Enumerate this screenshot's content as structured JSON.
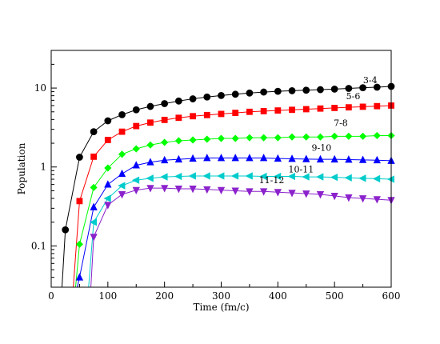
{
  "chart_data": {
    "type": "line",
    "title": "",
    "xlabel": "Time (fm/c)",
    "ylabel": "Population",
    "xlim": [
      0,
      600
    ],
    "ylim": [
      0.03,
      30
    ],
    "yscale": "log",
    "grid": false,
    "x_ticks": [
      0,
      100,
      200,
      300,
      400,
      500,
      600
    ],
    "y_ticks": [
      {
        "value": 0.1,
        "label": "0.1"
      },
      {
        "value": 1,
        "label": "1"
      },
      {
        "value": 10,
        "label": "10"
      }
    ],
    "x": [
      25,
      50,
      75,
      100,
      125,
      150,
      175,
      200,
      225,
      250,
      275,
      300,
      325,
      350,
      375,
      400,
      425,
      450,
      475,
      500,
      525,
      550,
      575,
      600
    ],
    "series": [
      {
        "name": "3-4",
        "color": "#000000",
        "marker": "circle",
        "curve_start": [
          19,
          0.03
        ],
        "values": [
          0.16,
          1.33,
          2.8,
          3.85,
          4.6,
          5.3,
          5.85,
          6.35,
          6.85,
          7.3,
          7.7,
          8.05,
          8.35,
          8.65,
          8.9,
          9.1,
          9.25,
          9.4,
          9.55,
          9.7,
          9.9,
          10.1,
          10.25,
          10.5
        ]
      },
      {
        "name": "5-6",
        "color": "#ff0000",
        "marker": "square",
        "curve_start": [
          39,
          0.03
        ],
        "values": [
          null,
          0.37,
          1.35,
          2.2,
          2.8,
          3.3,
          3.65,
          3.95,
          4.2,
          4.4,
          4.55,
          4.7,
          4.85,
          5.0,
          5.1,
          5.2,
          5.3,
          5.4,
          5.5,
          5.6,
          5.7,
          5.8,
          5.9,
          6.0
        ]
      },
      {
        "name": "7-8",
        "color": "#00ff00",
        "marker": "diamond",
        "curve_start": [
          43,
          0.03
        ],
        "values": [
          null,
          0.105,
          0.55,
          0.97,
          1.45,
          1.7,
          1.9,
          2.05,
          2.15,
          2.2,
          2.25,
          2.3,
          2.3,
          2.35,
          2.35,
          2.35,
          2.4,
          2.4,
          2.4,
          2.45,
          2.45,
          2.45,
          2.5,
          2.5
        ]
      },
      {
        "name": "9-10",
        "color": "#0000ff",
        "marker": "triangle-up",
        "curve_start": [
          46,
          0.03
        ],
        "values": [
          null,
          0.04,
          0.31,
          0.6,
          0.82,
          1.05,
          1.15,
          1.22,
          1.25,
          1.28,
          1.3,
          1.3,
          1.3,
          1.3,
          1.3,
          1.28,
          1.27,
          1.26,
          1.25,
          1.25,
          1.24,
          1.23,
          1.22,
          1.2
        ]
      },
      {
        "name": "10-11",
        "color": "#00cccc",
        "marker": "triangle-left",
        "curve_start": [
          66,
          0.03
        ],
        "values": [
          null,
          null,
          0.2,
          0.4,
          0.58,
          0.68,
          0.72,
          0.75,
          0.76,
          0.77,
          0.77,
          0.77,
          0.77,
          0.77,
          0.76,
          0.76,
          0.76,
          0.75,
          0.75,
          0.74,
          0.73,
          0.72,
          0.71,
          0.7
        ]
      },
      {
        "name": "11-12",
        "color": "#8b22cc",
        "marker": "triangle-down",
        "curve_start": [
          70,
          0.03
        ],
        "values": [
          null,
          null,
          0.13,
          0.33,
          0.45,
          0.51,
          0.54,
          0.54,
          0.53,
          0.53,
          0.52,
          0.51,
          0.5,
          0.49,
          0.49,
          0.48,
          0.47,
          0.46,
          0.45,
          0.43,
          0.41,
          0.4,
          0.39,
          0.38
        ]
      }
    ],
    "annotations": [
      {
        "text": "3-4",
        "series": 0,
        "x": 563,
        "y": 11.5
      },
      {
        "text": "5-6",
        "series": 1,
        "x": 533,
        "y": 7.2
      },
      {
        "text": "7-8",
        "series": 2,
        "x": 511,
        "y": 3.3
      },
      {
        "text": "9-10",
        "series": 3,
        "x": 477,
        "y": 1.6
      },
      {
        "text": "10-11",
        "series": 4,
        "x": 441,
        "y": 0.85
      },
      {
        "text": "11-12",
        "series": 5,
        "x": 389,
        "y": 0.62
      }
    ]
  }
}
